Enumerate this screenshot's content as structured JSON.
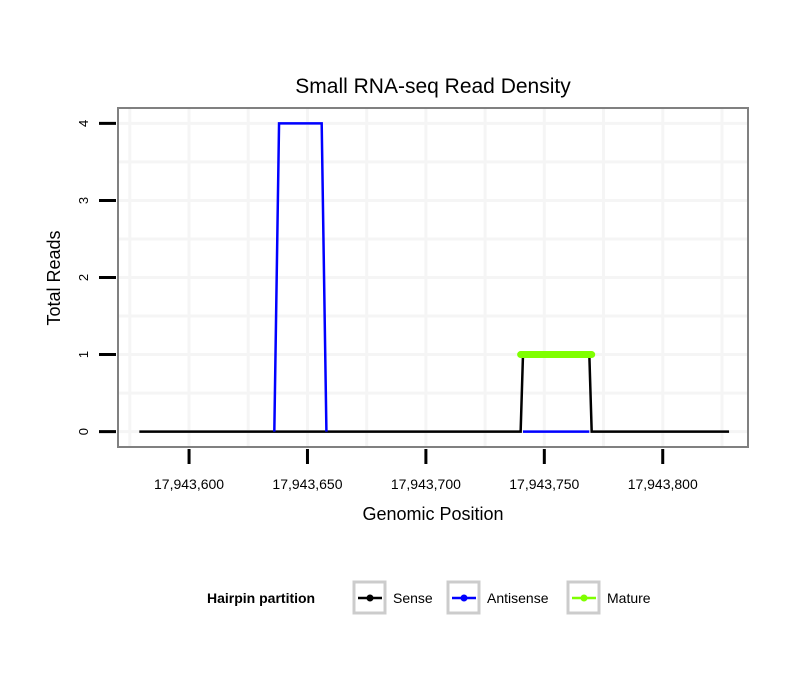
{
  "chart_data": {
    "type": "line",
    "title": "Small RNA-seq Read Density",
    "xlabel": "Genomic Position",
    "ylabel": "Total Reads",
    "xlim": [
      17943570,
      17943836
    ],
    "ylim": [
      -0.2,
      4.2
    ],
    "xticks": [
      17943600,
      17943650,
      17943700,
      17943750,
      17943800
    ],
    "xtick_labels": [
      "17,943,600",
      "17,943,650",
      "17,943,700",
      "17,943,750",
      "17,943,800"
    ],
    "yticks": [
      0,
      1,
      2,
      3,
      4
    ],
    "ytick_labels": [
      "0",
      "1",
      "2",
      "3",
      "4"
    ],
    "grid": true,
    "legend": {
      "title": "Hairpin partition",
      "placement": "bottom"
    },
    "series": [
      {
        "name": "Sense",
        "color": "#000000",
        "x": [
          17943579,
          17943740,
          17943741,
          17943769,
          17943770,
          17943828
        ],
        "y": [
          0,
          0,
          1,
          1,
          0,
          0
        ]
      },
      {
        "name": "Antisense",
        "color": "#0000ff",
        "x": [
          17943636,
          17943638,
          17943656,
          17943658
        ],
        "y": [
          0,
          4,
          4,
          0
        ]
      },
      {
        "name": "Antisense",
        "color": "#0000ff",
        "x": [
          17943741,
          17943769
        ],
        "y": [
          0,
          0
        ]
      },
      {
        "name": "Mature",
        "color": "#7fff00",
        "x": [
          17943740,
          17943770
        ],
        "y": [
          1,
          1
        ]
      }
    ]
  }
}
